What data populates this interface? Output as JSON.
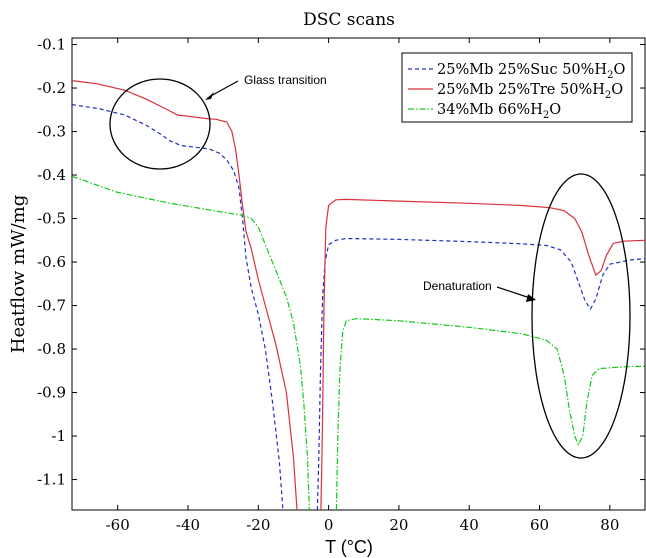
{
  "chart_data": {
    "type": "line",
    "title": "DSC scans",
    "xlabel": "T (°C)",
    "ylabel": "Heatflow mW/mg",
    "xlim": [
      -73,
      90
    ],
    "ylim": [
      -1.17,
      -0.085
    ],
    "xticks": [
      -60,
      -40,
      -20,
      0,
      20,
      40,
      60,
      80
    ],
    "yticks": [
      -0.1,
      -0.2,
      -0.3,
      -0.4,
      -0.5,
      -0.6,
      -0.7,
      -0.8,
      -0.9,
      -1,
      -1.1
    ],
    "grid": false,
    "legend_position": "top-right",
    "series": [
      {
        "name": "25%Mb 25%Suc 50%H",
        "name_sub": "2",
        "name_tail": "O",
        "color": "#1f2ec2",
        "dash": "dashed",
        "points": [
          [
            -73,
            -0.238
          ],
          [
            -65,
            -0.248
          ],
          [
            -58,
            -0.262
          ],
          [
            -52,
            -0.285
          ],
          [
            -48,
            -0.305
          ],
          [
            -45,
            -0.322
          ],
          [
            -42,
            -0.332
          ],
          [
            -38,
            -0.336
          ],
          [
            -34,
            -0.34
          ],
          [
            -31,
            -0.35
          ],
          [
            -29,
            -0.365
          ],
          [
            -27,
            -0.39
          ],
          [
            -25.5,
            -0.43
          ],
          [
            -24.5,
            -0.5
          ],
          [
            -23.5,
            -0.59
          ],
          [
            -22,
            -0.66
          ],
          [
            -20,
            -0.72
          ],
          [
            -18,
            -0.8
          ],
          [
            -16,
            -0.92
          ],
          [
            -14,
            -1.06
          ],
          [
            -13,
            -1.17
          ],
          [
            null,
            null
          ],
          [
            -3.2,
            -1.17
          ],
          [
            -2.8,
            -1.05
          ],
          [
            -2.3,
            -0.85
          ],
          [
            -1.7,
            -0.68
          ],
          [
            -1,
            -0.6
          ],
          [
            0,
            -0.56
          ],
          [
            2,
            -0.55
          ],
          [
            5,
            -0.546
          ],
          [
            20,
            -0.548
          ],
          [
            40,
            -0.553
          ],
          [
            55,
            -0.558
          ],
          [
            62,
            -0.562
          ],
          [
            66,
            -0.572
          ],
          [
            69,
            -0.6
          ],
          [
            71,
            -0.645
          ],
          [
            73,
            -0.69
          ],
          [
            74.5,
            -0.708
          ],
          [
            76,
            -0.685
          ],
          [
            78,
            -0.63
          ],
          [
            80,
            -0.605
          ],
          [
            83,
            -0.6
          ],
          [
            86,
            -0.595
          ],
          [
            90,
            -0.592
          ]
        ]
      },
      {
        "name": "25%Mb 25%Tre 50%H",
        "name_sub": "2",
        "name_tail": "O",
        "color": "#d9303c",
        "dash": "solid",
        "points": [
          [
            -73,
            -0.183
          ],
          [
            -66,
            -0.19
          ],
          [
            -58,
            -0.205
          ],
          [
            -52,
            -0.225
          ],
          [
            -47,
            -0.245
          ],
          [
            -43,
            -0.262
          ],
          [
            -39,
            -0.266
          ],
          [
            -35,
            -0.27
          ],
          [
            -32,
            -0.272
          ],
          [
            -29,
            -0.278
          ],
          [
            -27.5,
            -0.3
          ],
          [
            -26.5,
            -0.34
          ],
          [
            -25.5,
            -0.4
          ],
          [
            -24.5,
            -0.47
          ],
          [
            -23.5,
            -0.53
          ],
          [
            -22,
            -0.57
          ],
          [
            -20,
            -0.64
          ],
          [
            -18,
            -0.7
          ],
          [
            -15,
            -0.79
          ],
          [
            -12,
            -0.9
          ],
          [
            -10,
            -1.05
          ],
          [
            -9,
            -1.17
          ],
          [
            null,
            null
          ],
          [
            -2.2,
            -1.17
          ],
          [
            -1.8,
            -1.0
          ],
          [
            -1.3,
            -0.7
          ],
          [
            -0.8,
            -0.52
          ],
          [
            0,
            -0.47
          ],
          [
            2,
            -0.457
          ],
          [
            5,
            -0.456
          ],
          [
            20,
            -0.46
          ],
          [
            40,
            -0.465
          ],
          [
            55,
            -0.47
          ],
          [
            63,
            -0.475
          ],
          [
            67,
            -0.482
          ],
          [
            70,
            -0.5
          ],
          [
            72,
            -0.53
          ],
          [
            74,
            -0.585
          ],
          [
            76,
            -0.63
          ],
          [
            77.5,
            -0.62
          ],
          [
            79,
            -0.585
          ],
          [
            81,
            -0.557
          ],
          [
            84,
            -0.552
          ],
          [
            87,
            -0.551
          ],
          [
            90,
            -0.55
          ]
        ]
      },
      {
        "name": "34%Mb 66%H",
        "name_sub": "2",
        "name_tail": "O",
        "color": "#12c91a",
        "dash": "dashdot",
        "points": [
          [
            -73,
            -0.403
          ],
          [
            -60,
            -0.44
          ],
          [
            -45,
            -0.465
          ],
          [
            -32,
            -0.483
          ],
          [
            -25,
            -0.492
          ],
          [
            -22,
            -0.5
          ],
          [
            -20,
            -0.52
          ],
          [
            -18,
            -0.56
          ],
          [
            -15,
            -0.62
          ],
          [
            -12,
            -0.68
          ],
          [
            -10,
            -0.74
          ],
          [
            -8,
            -0.84
          ],
          [
            -7,
            -0.93
          ],
          [
            -6,
            -1.05
          ],
          [
            -5.5,
            -1.17
          ],
          [
            null,
            null
          ],
          [
            2.2,
            -1.17
          ],
          [
            2.6,
            -1.0
          ],
          [
            3.2,
            -0.85
          ],
          [
            4,
            -0.76
          ],
          [
            5,
            -0.735
          ],
          [
            8,
            -0.73
          ],
          [
            20,
            -0.735
          ],
          [
            40,
            -0.75
          ],
          [
            55,
            -0.765
          ],
          [
            62,
            -0.78
          ],
          [
            65,
            -0.8
          ],
          [
            67,
            -0.86
          ],
          [
            68.5,
            -0.94
          ],
          [
            70,
            -1.0
          ],
          [
            71,
            -1.02
          ],
          [
            72.3,
            -1.0
          ],
          [
            73.5,
            -0.92
          ],
          [
            75,
            -0.86
          ],
          [
            77,
            -0.845
          ],
          [
            82,
            -0.842
          ],
          [
            86,
            -0.84
          ],
          [
            90,
            -0.84
          ]
        ]
      }
    ],
    "annotations": [
      {
        "text": "Glass transition"
      },
      {
        "text": "Denaturation"
      }
    ]
  }
}
